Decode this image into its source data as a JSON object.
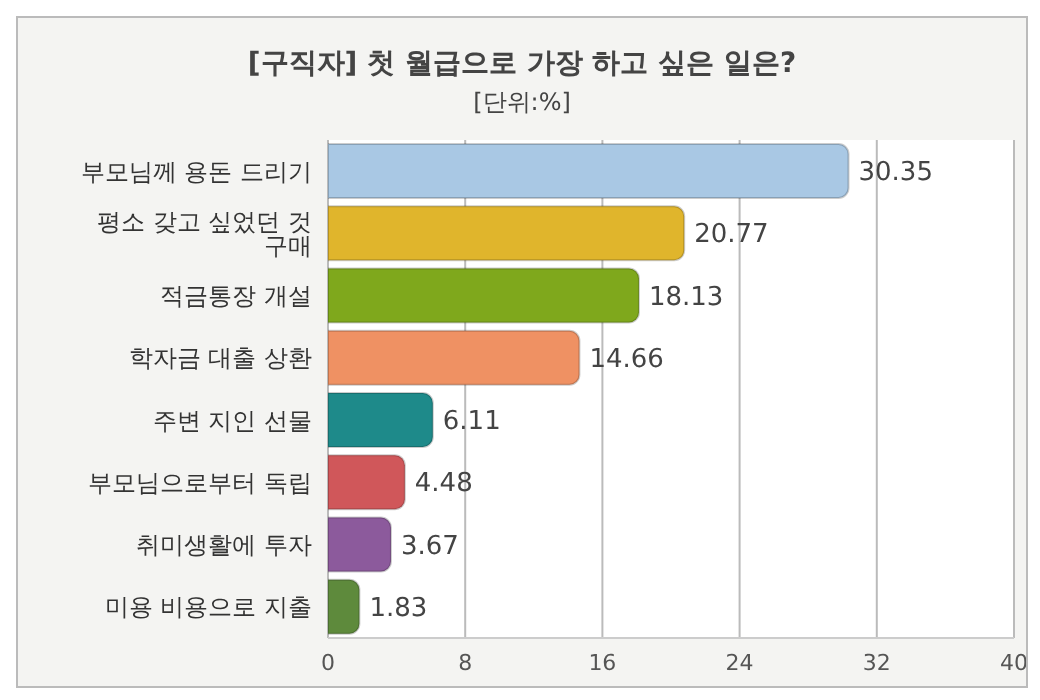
{
  "chart_data": {
    "type": "bar",
    "orientation": "horizontal",
    "title": "[구직자] 첫 월급으로 가장 하고 싶은 일은?",
    "subtitle": "[단위:%]",
    "categories": [
      "부모님께 용돈 드리기",
      "평소 갖고 싶었던 것 구매",
      "적금통장 개설",
      "학자금 대출 상환",
      "주변 지인 선물",
      "부모님으로부터 독립",
      "취미생활에 투자",
      "미용 비용으로 지출"
    ],
    "values": [
      30.35,
      20.77,
      18.13,
      14.66,
      6.11,
      4.48,
      3.67,
      1.83
    ],
    "colors": [
      "#a9c8e4",
      "#e0b52c",
      "#7fa81c",
      "#ef9163",
      "#1e8a8a",
      "#d0575a",
      "#8c5a9c",
      "#5e8a3c"
    ],
    "xlim": [
      0,
      40
    ],
    "xticks": [
      0,
      8,
      16,
      24,
      32,
      40
    ],
    "grid": "x",
    "data_labels": true
  }
}
